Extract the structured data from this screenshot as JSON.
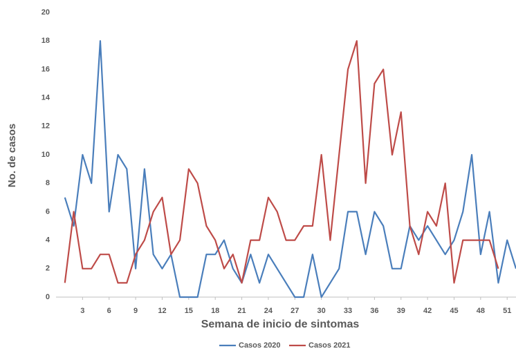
{
  "chart_data": {
    "type": "line",
    "x_label": "Semana de inicio de sintomas",
    "y_label": "No. de casos",
    "x": [
      1,
      2,
      3,
      4,
      5,
      6,
      7,
      8,
      9,
      10,
      11,
      12,
      13,
      14,
      15,
      16,
      17,
      18,
      19,
      20,
      21,
      22,
      23,
      24,
      25,
      26,
      27,
      28,
      29,
      30,
      31,
      32,
      33,
      34,
      35,
      36,
      37,
      38,
      39,
      40,
      41,
      42,
      43,
      44,
      45,
      46,
      47,
      48,
      49,
      50,
      51,
      52
    ],
    "series": [
      {
        "name": "Casos 2020",
        "color": "#4a7ebb",
        "values": [
          7,
          5,
          10,
          8,
          18,
          6,
          10,
          9,
          2,
          9,
          3,
          2,
          3,
          0,
          0,
          0,
          3,
          3,
          4,
          2,
          1,
          3,
          1,
          3,
          2,
          1,
          0,
          0,
          3,
          0,
          1,
          2,
          6,
          6,
          3,
          6,
          5,
          2,
          2,
          5,
          4,
          5,
          4,
          3,
          4,
          6,
          10,
          3,
          6,
          1,
          4,
          2
        ]
      },
      {
        "name": "Casos 2021",
        "color": "#be4b48",
        "values": [
          1,
          6,
          2,
          2,
          3,
          3,
          1,
          1,
          3,
          4,
          6,
          7,
          3,
          4,
          9,
          8,
          5,
          4,
          2,
          3,
          1,
          4,
          4,
          7,
          6,
          4,
          4,
          5,
          5,
          10,
          4,
          10,
          16,
          18,
          8,
          15,
          16,
          10,
          13,
          5,
          3,
          6,
          5,
          8,
          1,
          4,
          4,
          4,
          4,
          2,
          null,
          null
        ]
      }
    ],
    "xlim": [
      0,
      52
    ],
    "xticks": [
      3,
      6,
      9,
      12,
      15,
      18,
      21,
      24,
      27,
      30,
      33,
      36,
      39,
      42,
      45,
      48,
      51
    ],
    "ylim": [
      0,
      20
    ],
    "yticks": [
      0,
      2,
      4,
      6,
      8,
      10,
      12,
      14,
      16,
      18,
      20
    ]
  }
}
